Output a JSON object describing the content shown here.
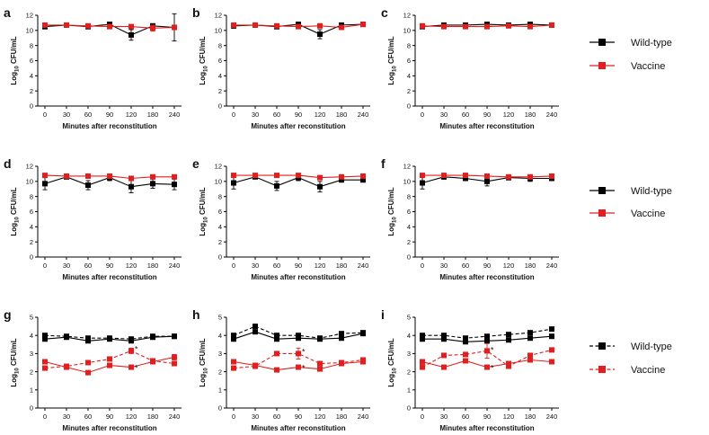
{
  "colors": {
    "wild_type": "#000000",
    "vaccine": "#e41e1e"
  },
  "x_ticks": [
    0,
    30,
    60,
    90,
    120,
    180,
    240
  ],
  "legend": {
    "wild_type": "Wild-type",
    "vaccine": "Vaccine"
  },
  "chart_data": [
    {
      "panel": "a",
      "type": "line",
      "xlabel": "Minutes after reconstitution",
      "ylabel": "Log10 CFU/mL",
      "ylim": [
        0,
        12
      ],
      "yticks": [
        0,
        2,
        4,
        6,
        8,
        10,
        12
      ],
      "series": [
        {
          "name": "Wild-type",
          "style": "solid",
          "values": [
            10.5,
            10.7,
            10.5,
            10.8,
            9.4,
            10.6,
            10.4
          ],
          "errors": [
            0.3,
            0.1,
            0.3,
            0.2,
            0.7,
            0.2,
            1.8
          ]
        },
        {
          "name": "Vaccine",
          "style": "solid",
          "values": [
            10.7,
            10.7,
            10.6,
            10.5,
            10.5,
            10.3,
            10.4
          ],
          "errors": [
            0.2,
            0.1,
            0.2,
            0.2,
            0.2,
            0.4,
            0.2
          ]
        }
      ]
    },
    {
      "panel": "b",
      "type": "line",
      "xlabel": "Minutes after reconstitution",
      "ylabel": "Log10 CFU/mL",
      "ylim": [
        0,
        12
      ],
      "yticks": [
        0,
        2,
        4,
        6,
        8,
        10,
        12
      ],
      "series": [
        {
          "name": "Wild-type",
          "style": "solid",
          "values": [
            10.6,
            10.7,
            10.5,
            10.8,
            9.5,
            10.7,
            10.8
          ],
          "errors": [
            0.3,
            0.1,
            0.3,
            0.2,
            0.6,
            0.2,
            0.2
          ]
        },
        {
          "name": "Vaccine",
          "style": "solid",
          "values": [
            10.7,
            10.7,
            10.6,
            10.5,
            10.6,
            10.4,
            10.8
          ],
          "errors": [
            0.2,
            0.1,
            0.2,
            0.2,
            0.1,
            0.2,
            0.2
          ]
        }
      ]
    },
    {
      "panel": "c",
      "type": "line",
      "xlabel": "Minutes after reconstitution",
      "ylabel": "Log10 CFU/mL",
      "ylim": [
        0,
        12
      ],
      "yticks": [
        0,
        2,
        4,
        6,
        8,
        10,
        12
      ],
      "series": [
        {
          "name": "Wild-type",
          "style": "solid",
          "values": [
            10.5,
            10.7,
            10.7,
            10.8,
            10.7,
            10.8,
            10.7
          ],
          "errors": [
            0.2,
            0.1,
            0.1,
            0.1,
            0.1,
            0.1,
            0.1
          ]
        },
        {
          "name": "Vaccine",
          "style": "solid",
          "values": [
            10.6,
            10.5,
            10.5,
            10.5,
            10.6,
            10.5,
            10.7
          ],
          "errors": [
            0.2,
            0.1,
            0.1,
            0.1,
            0.1,
            0.1,
            0.1
          ]
        }
      ]
    },
    {
      "panel": "d",
      "type": "line",
      "xlabel": "Minutes after reconstitution",
      "ylabel": "Log10 CFU/mL",
      "ylim": [
        0,
        12
      ],
      "yticks": [
        0,
        2,
        4,
        6,
        8,
        10,
        12
      ],
      "series": [
        {
          "name": "Wild-type",
          "style": "solid",
          "values": [
            9.7,
            10.6,
            9.5,
            10.5,
            9.3,
            9.7,
            9.6
          ],
          "errors": [
            0.8,
            0.2,
            0.6,
            0.4,
            0.8,
            0.6,
            0.7
          ]
        },
        {
          "name": "Vaccine",
          "style": "solid",
          "values": [
            10.8,
            10.7,
            10.7,
            10.7,
            10.4,
            10.6,
            10.6
          ],
          "errors": [
            0.1,
            0.1,
            0.1,
            0.1,
            0.2,
            0.1,
            0.1
          ]
        }
      ]
    },
    {
      "panel": "e",
      "type": "line",
      "xlabel": "Minutes after reconstitution",
      "ylabel": "Log10 CFU/mL",
      "ylim": [
        0,
        12
      ],
      "yticks": [
        0,
        2,
        4,
        6,
        8,
        10,
        12
      ],
      "series": [
        {
          "name": "Wild-type",
          "style": "solid",
          "values": [
            9.8,
            10.6,
            9.4,
            10.5,
            9.3,
            10.2,
            10.2
          ],
          "errors": [
            0.8,
            0.2,
            0.6,
            0.4,
            0.7,
            0.3,
            0.3
          ]
        },
        {
          "name": "Vaccine",
          "style": "solid",
          "values": [
            10.8,
            10.8,
            10.8,
            10.8,
            10.5,
            10.6,
            10.7
          ],
          "errors": [
            0.1,
            0.1,
            0.1,
            0.1,
            0.1,
            0.1,
            0.1
          ]
        }
      ]
    },
    {
      "panel": "f",
      "type": "line",
      "xlabel": "Minutes after reconstitution",
      "ylabel": "Log10 CFU/mL",
      "ylim": [
        0,
        12
      ],
      "yticks": [
        0,
        2,
        4,
        6,
        8,
        10,
        12
      ],
      "series": [
        {
          "name": "Wild-type",
          "style": "solid",
          "values": [
            9.8,
            10.6,
            10.4,
            10.0,
            10.5,
            10.4,
            10.4
          ],
          "errors": [
            0.8,
            0.3,
            0.3,
            0.6,
            0.3,
            0.4,
            0.3
          ]
        },
        {
          "name": "Vaccine",
          "style": "solid",
          "values": [
            10.8,
            10.8,
            10.8,
            10.7,
            10.6,
            10.6,
            10.7
          ],
          "errors": [
            0.1,
            0.1,
            0.1,
            0.1,
            0.1,
            0.1,
            0.1
          ]
        }
      ]
    },
    {
      "panel": "g",
      "type": "line",
      "xlabel": "Minutes after reconstitution",
      "ylabel": "Log10 CFU/mL",
      "ylim": [
        0,
        5
      ],
      "yticks": [
        0,
        1,
        2,
        3,
        4,
        5
      ],
      "series": [
        {
          "name": "Wild-type",
          "style": "solid",
          "values": [
            3.8,
            3.9,
            3.7,
            3.8,
            3.7,
            3.9,
            3.95
          ],
          "errors": [
            0.05,
            0.1,
            0.05,
            0.05,
            0.1,
            0.05,
            0.05
          ]
        },
        {
          "name": "Wild-type",
          "style": "dashed",
          "values": [
            4.0,
            3.95,
            3.85,
            3.85,
            3.8,
            3.95,
            3.95
          ],
          "errors": [
            0.05,
            0.05,
            0.05,
            0.05,
            0.05,
            0.05,
            0.05
          ]
        },
        {
          "name": "Vaccine",
          "style": "solid",
          "values": [
            2.55,
            2.25,
            1.95,
            2.35,
            2.25,
            2.55,
            2.8
          ],
          "errors": [
            0.08,
            0.08,
            0.05,
            0.08,
            0.08,
            0.1,
            0.15
          ]
        },
        {
          "name": "Vaccine",
          "style": "dashed",
          "values": [
            2.2,
            2.3,
            2.5,
            2.7,
            3.15,
            2.6,
            2.45
          ],
          "errors": [
            0.05,
            0.1,
            0.1,
            0.1,
            0.15,
            0.1,
            0.1
          ]
        }
      ],
      "annotations": [
        {
          "x": 120,
          "y": 3.2,
          "text": "*"
        },
        {
          "x": 120,
          "y": 2.15,
          "text": "*"
        }
      ]
    },
    {
      "panel": "h",
      "type": "line",
      "xlabel": "Minutes after reconstitution",
      "ylabel": "Log10 CFU/mL",
      "ylim": [
        0,
        5
      ],
      "yticks": [
        0,
        1,
        2,
        3,
        4,
        5
      ],
      "series": [
        {
          "name": "Wild-type",
          "style": "solid",
          "values": [
            3.8,
            4.2,
            3.8,
            3.85,
            3.8,
            3.85,
            4.1
          ],
          "errors": [
            0.05,
            0.1,
            0.1,
            0.1,
            0.05,
            0.05,
            0.1
          ]
        },
        {
          "name": "Wild-type",
          "style": "dashed",
          "values": [
            4.0,
            4.5,
            4.0,
            4.0,
            3.85,
            4.1,
            4.15
          ],
          "errors": [
            0.05,
            0.1,
            0.05,
            0.05,
            0.05,
            0.05,
            0.05
          ]
        },
        {
          "name": "Vaccine",
          "style": "solid",
          "values": [
            2.55,
            2.35,
            2.1,
            2.25,
            2.15,
            2.45,
            2.55
          ],
          "errors": [
            0.05,
            0.05,
            0.1,
            0.05,
            0.05,
            0.05,
            0.05
          ]
        },
        {
          "name": "Vaccine",
          "style": "dashed",
          "values": [
            2.2,
            2.3,
            3.0,
            3.0,
            2.45,
            2.5,
            2.65
          ],
          "errors": [
            0.05,
            0.05,
            0.05,
            0.3,
            0.1,
            0.05,
            0.05
          ]
        }
      ],
      "annotations": [
        {
          "x": 90,
          "y": 3.05,
          "text": "*"
        },
        {
          "x": 90,
          "y": 2.15,
          "text": "*"
        }
      ]
    },
    {
      "panel": "i",
      "type": "line",
      "xlabel": "Minutes after reconstitution",
      "ylabel": "Log10 CFU/mL",
      "ylim": [
        0,
        5
      ],
      "yticks": [
        0,
        1,
        2,
        3,
        4,
        5
      ],
      "series": [
        {
          "name": "Wild-type",
          "style": "solid",
          "values": [
            3.8,
            3.8,
            3.65,
            3.7,
            3.75,
            3.85,
            3.95
          ],
          "errors": [
            0.05,
            0.05,
            0.05,
            0.05,
            0.05,
            0.05,
            0.05
          ]
        },
        {
          "name": "Wild-type",
          "style": "dashed",
          "values": [
            4.0,
            4.0,
            3.85,
            3.95,
            4.05,
            4.15,
            4.35
          ],
          "errors": [
            0.05,
            0.05,
            0.05,
            0.05,
            0.05,
            0.05,
            0.05
          ]
        },
        {
          "name": "Vaccine",
          "style": "solid",
          "values": [
            2.55,
            2.25,
            2.6,
            2.25,
            2.45,
            2.65,
            2.55
          ],
          "errors": [
            0.05,
            0.05,
            0.1,
            0.05,
            0.1,
            0.1,
            0.05
          ]
        },
        {
          "name": "Vaccine",
          "style": "dashed",
          "values": [
            2.25,
            2.9,
            2.95,
            3.15,
            2.3,
            2.9,
            3.2
          ],
          "errors": [
            0.05,
            0.1,
            0.1,
            0.4,
            0.1,
            0.05,
            0.05
          ]
        }
      ],
      "annotations": [
        {
          "x": 90,
          "y": 3.15,
          "text": "*"
        },
        {
          "x": 90,
          "y": 2.15,
          "text": "*"
        }
      ]
    }
  ]
}
